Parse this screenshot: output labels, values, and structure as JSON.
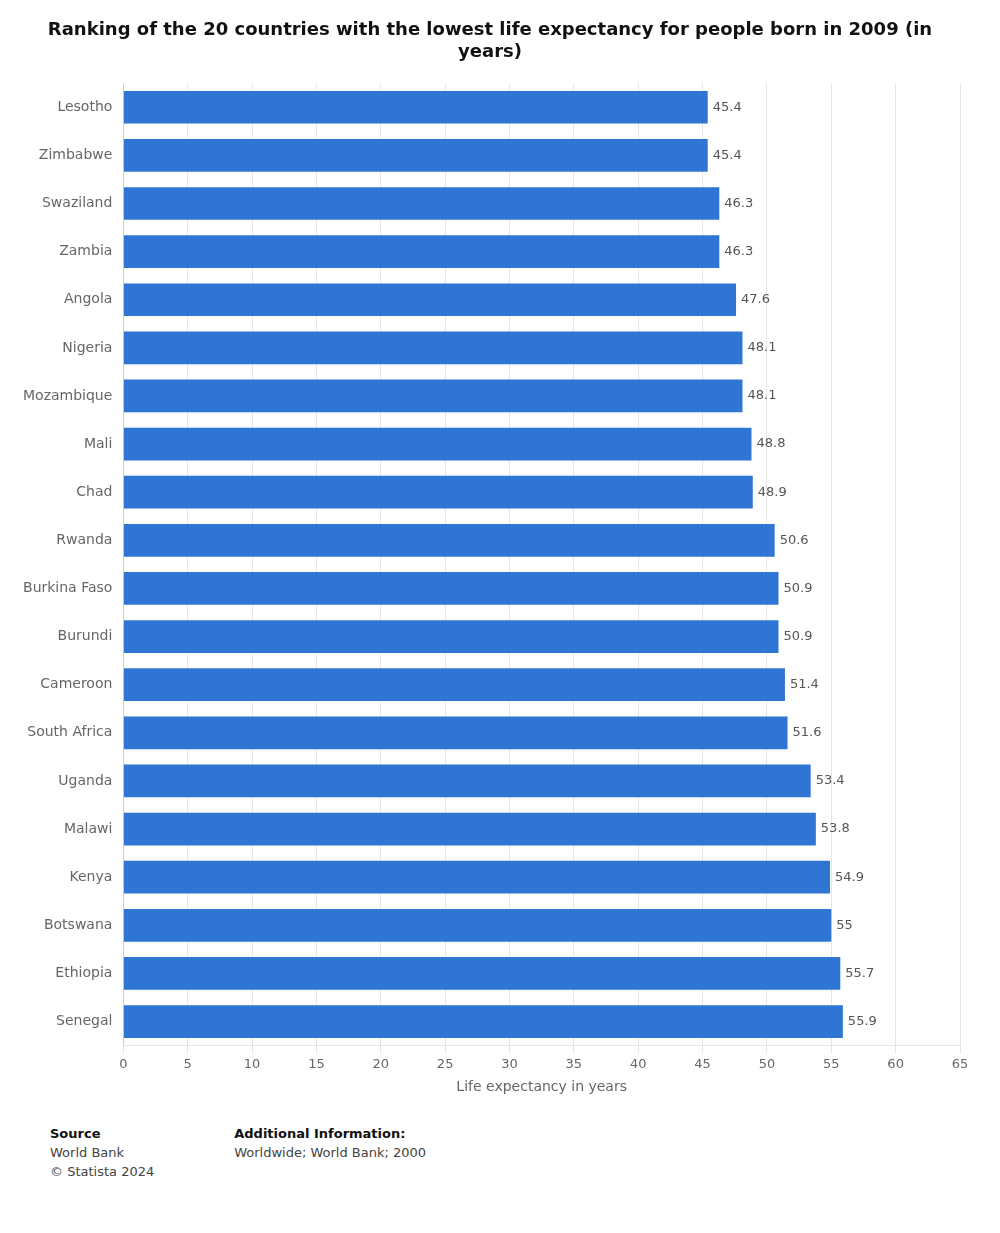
{
  "chart_data": {
    "type": "bar",
    "orientation": "horizontal",
    "title": "Ranking of the 20 countries with the lowest life expectancy for people born in 2009 (in\nyears)",
    "xlabel": "Life expectancy in years",
    "categories": [
      "Lesotho",
      "Zimbabwe",
      "Swaziland",
      "Zambia",
      "Angola",
      "Nigeria",
      "Mozambique",
      "Mali",
      "Chad",
      "Rwanda",
      "Burkina Faso",
      "Burundi",
      "Cameroon",
      "South Africa",
      "Uganda",
      "Malawi",
      "Kenya",
      "Botswana",
      "Ethiopia",
      "Senegal"
    ],
    "values": [
      45.4,
      45.4,
      46.3,
      46.3,
      47.6,
      48.1,
      48.1,
      48.8,
      48.9,
      50.6,
      50.9,
      50.9,
      51.4,
      51.6,
      53.4,
      53.8,
      54.9,
      55,
      55.7,
      55.9
    ],
    "color": "#2e75d4",
    "xlim": [
      0,
      65
    ],
    "xticks": [
      0,
      5,
      10,
      15,
      20,
      25,
      30,
      35,
      40,
      45,
      50,
      55,
      60,
      65
    ],
    "grid": true,
    "data_labels": true,
    "annotations": [
      [
        "Source",
        "World Bank",
        "© Statista 2024"
      ],
      [
        "Additional Information:",
        "Worldwide; World Bank; 2000"
      ]
    ]
  }
}
